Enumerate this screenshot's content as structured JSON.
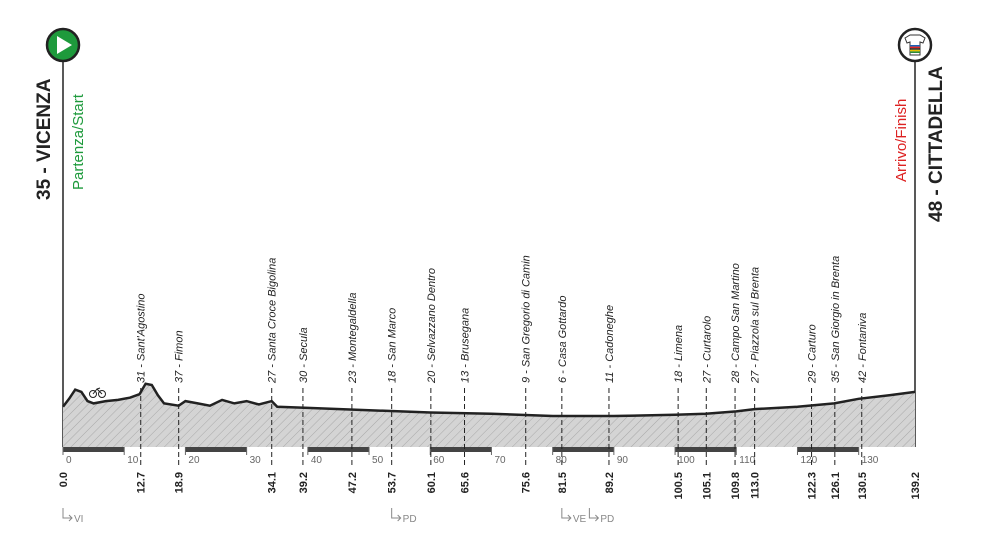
{
  "chart_data": {
    "type": "elevation-profile",
    "start": {
      "name": "35 - VICENZA",
      "label": "Partenza/Start"
    },
    "finish": {
      "name": "48 - CITTADELLA",
      "label": "Arrivo/Finish"
    },
    "xlim": [
      0,
      139.2
    ],
    "xticks": [
      0,
      10,
      20,
      30,
      40,
      50,
      60,
      70,
      80,
      90,
      100,
      110,
      120,
      130
    ],
    "ylim": [
      0,
      350
    ],
    "profile": {
      "x": [
        0,
        1,
        2,
        3,
        4,
        5,
        7,
        9,
        11,
        12.5,
        13.5,
        14.5,
        15.5,
        16.5,
        18.9,
        20,
        22,
        24,
        26,
        28,
        30,
        32,
        34.1,
        35,
        40,
        50,
        60,
        70,
        80,
        90,
        100,
        105,
        110,
        113,
        120,
        126,
        130,
        135,
        139.2
      ],
      "y": [
        35,
        42,
        50,
        48,
        40,
        38,
        40,
        41,
        43,
        46,
        55,
        54,
        45,
        38,
        36,
        40,
        38,
        36,
        41,
        38,
        40,
        37,
        40,
        35,
        34,
        32,
        30,
        29,
        27,
        27,
        28,
        29,
        31,
        33,
        35,
        38,
        42,
        45,
        48
      ]
    },
    "waypoints": [
      {
        "name": "",
        "km": {
          "value": 0,
          "label": "0.0"
        }
      },
      {
        "name": "31 - Sant'Agostino",
        "km": 12.7
      },
      {
        "name": "37 - Fimon",
        "km": 18.9
      },
      {
        "name": "27 - Santa Croce Bigolina",
        "km": 34.1
      },
      {
        "name": "30 - Secula",
        "km": 39.2
      },
      {
        "name": "23 - Montegaldella",
        "km": 47.2
      },
      {
        "name": "18 - San Marco",
        "km": 53.7
      },
      {
        "name": "20 - Selvazzano Dentro",
        "km": 60.1
      },
      {
        "name": "13 - Brusegana",
        "km": 65.6
      },
      {
        "name": "9 - San Gregorio di Camin",
        "km": 75.6
      },
      {
        "name": "6 - Casa Gottardo",
        "km": 81.5
      },
      {
        "name": "11 - Cadoneghe",
        "km": 89.2
      },
      {
        "name": "18 - Limena",
        "km": 100.5
      },
      {
        "name": "27 - Curtarolo",
        "km": 105.1
      },
      {
        "name": "28 - Campo San Martino",
        "km": 109.8
      },
      {
        "name": "27 - Piazzola sul Brenta",
        "km": {
          "value": 113,
          "label": "113.0"
        }
      },
      {
        "name": "29 - Carturo",
        "km": 122.3
      },
      {
        "name": "35 - San Giorgio in Brenta",
        "km": 126.1
      },
      {
        "name": "42 - Fontaniva",
        "km": 130.5
      },
      {
        "name": "",
        "km": 139.2
      }
    ],
    "provinces": [
      {
        "label": "VI",
        "km": 0
      },
      {
        "label": "PD",
        "km": 53.7
      },
      {
        "label": "VE",
        "km": 81.5
      },
      {
        "label": "PD",
        "km": 86
      }
    ]
  }
}
